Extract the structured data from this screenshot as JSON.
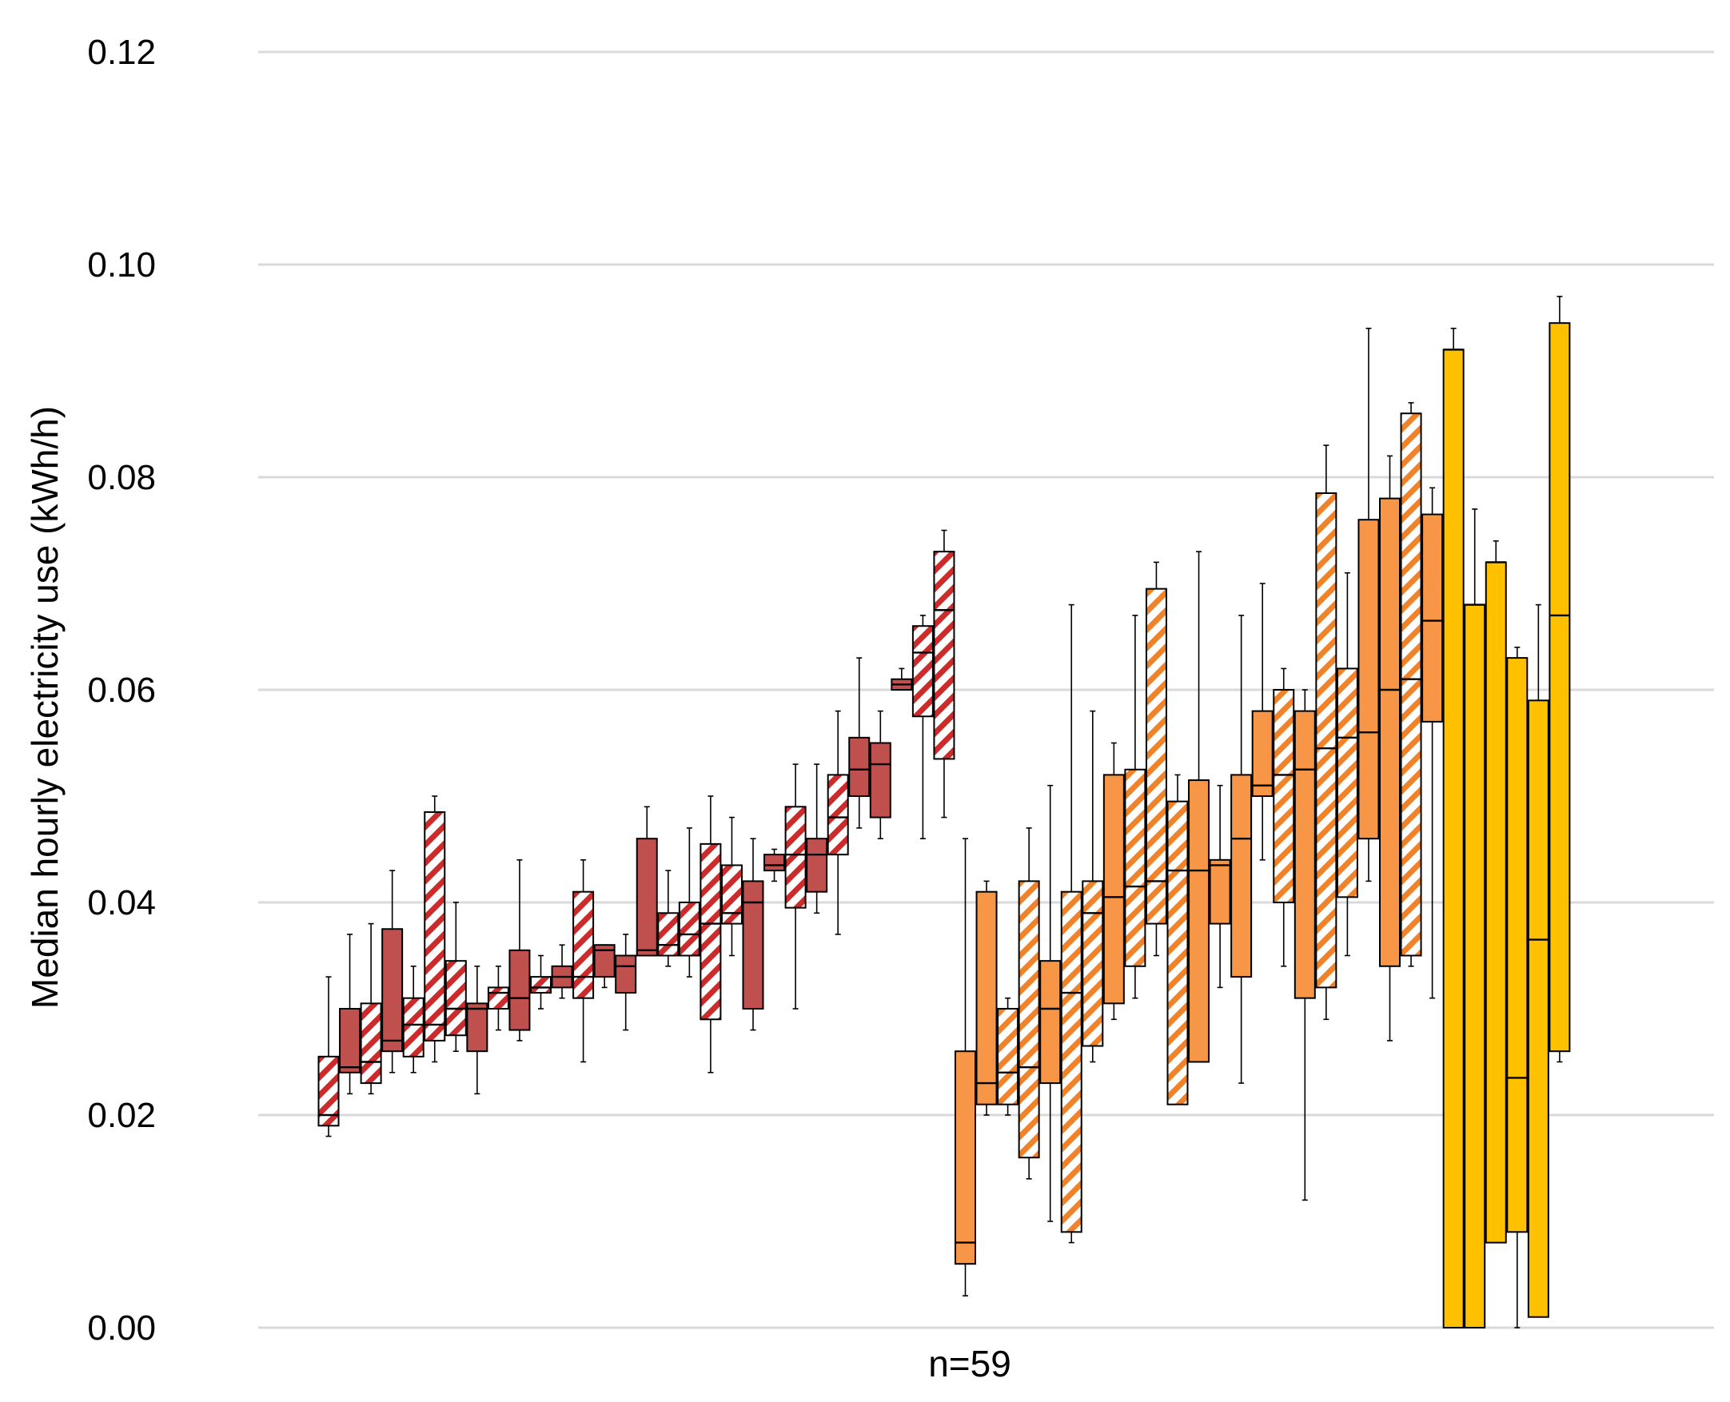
{
  "chart_data": {
    "type": "boxplot",
    "title": "",
    "ylabel": "Median hourly electricity use (kWh/h)",
    "xlabel": "n=59",
    "ylim": [
      0,
      0.12
    ],
    "yticks": [
      "0.00",
      "0.02",
      "0.04",
      "0.06",
      "0.08",
      "0.10",
      "0.12"
    ],
    "grid": true,
    "legend": "none",
    "colors": {
      "dark_red": "#c0504d",
      "stripe_red": "#cc2b2b",
      "orange": "#f79646",
      "stripe_orange": "#f0832a",
      "yellow": "#ffc000",
      "grid": "#d9d9d9"
    },
    "boxes": [
      {
        "q1": 0.019,
        "median": 0.02,
        "q3": 0.0255,
        "lo": 0.018,
        "hi": 0.033,
        "color": "red",
        "pattern": "hatch"
      },
      {
        "q1": 0.024,
        "median": 0.0245,
        "q3": 0.03,
        "lo": 0.022,
        "hi": 0.037,
        "color": "red",
        "pattern": "solid"
      },
      {
        "q1": 0.023,
        "median": 0.025,
        "q3": 0.0305,
        "lo": 0.022,
        "hi": 0.038,
        "color": "red",
        "pattern": "hatch"
      },
      {
        "q1": 0.026,
        "median": 0.027,
        "q3": 0.0375,
        "lo": 0.024,
        "hi": 0.043,
        "color": "red",
        "pattern": "solid"
      },
      {
        "q1": 0.0255,
        "median": 0.0285,
        "q3": 0.031,
        "lo": 0.024,
        "hi": 0.034,
        "color": "red",
        "pattern": "hatch"
      },
      {
        "q1": 0.027,
        "median": 0.0285,
        "q3": 0.0485,
        "lo": 0.025,
        "hi": 0.05,
        "color": "red",
        "pattern": "hatch"
      },
      {
        "q1": 0.0275,
        "median": 0.03,
        "q3": 0.0345,
        "lo": 0.026,
        "hi": 0.04,
        "color": "red",
        "pattern": "hatch"
      },
      {
        "q1": 0.026,
        "median": 0.03,
        "q3": 0.0305,
        "lo": 0.022,
        "hi": 0.034,
        "color": "red",
        "pattern": "solid"
      },
      {
        "q1": 0.03,
        "median": 0.0315,
        "q3": 0.032,
        "lo": 0.028,
        "hi": 0.034,
        "color": "red",
        "pattern": "hatch"
      },
      {
        "q1": 0.028,
        "median": 0.031,
        "q3": 0.0355,
        "lo": 0.027,
        "hi": 0.044,
        "color": "red",
        "pattern": "solid"
      },
      {
        "q1": 0.0315,
        "median": 0.032,
        "q3": 0.033,
        "lo": 0.03,
        "hi": 0.035,
        "color": "red",
        "pattern": "hatch"
      },
      {
        "q1": 0.032,
        "median": 0.033,
        "q3": 0.034,
        "lo": 0.031,
        "hi": 0.036,
        "color": "red",
        "pattern": "solid"
      },
      {
        "q1": 0.031,
        "median": 0.033,
        "q3": 0.041,
        "lo": 0.025,
        "hi": 0.044,
        "color": "red",
        "pattern": "hatch"
      },
      {
        "q1": 0.033,
        "median": 0.0355,
        "q3": 0.036,
        "lo": 0.032,
        "hi": 0.036,
        "color": "red",
        "pattern": "solid"
      },
      {
        "q1": 0.0315,
        "median": 0.034,
        "q3": 0.035,
        "lo": 0.028,
        "hi": 0.037,
        "color": "red",
        "pattern": "solid"
      },
      {
        "q1": 0.035,
        "median": 0.0355,
        "q3": 0.046,
        "lo": 0.035,
        "hi": 0.049,
        "color": "red",
        "pattern": "solid"
      },
      {
        "q1": 0.035,
        "median": 0.036,
        "q3": 0.039,
        "lo": 0.034,
        "hi": 0.043,
        "color": "red",
        "pattern": "hatch"
      },
      {
        "q1": 0.035,
        "median": 0.037,
        "q3": 0.04,
        "lo": 0.033,
        "hi": 0.047,
        "color": "red",
        "pattern": "hatch"
      },
      {
        "q1": 0.029,
        "median": 0.038,
        "q3": 0.0455,
        "lo": 0.024,
        "hi": 0.05,
        "color": "red",
        "pattern": "hatch"
      },
      {
        "q1": 0.038,
        "median": 0.039,
        "q3": 0.0435,
        "lo": 0.035,
        "hi": 0.048,
        "color": "red",
        "pattern": "hatch"
      },
      {
        "q1": 0.03,
        "median": 0.04,
        "q3": 0.042,
        "lo": 0.028,
        "hi": 0.046,
        "color": "red",
        "pattern": "solid"
      },
      {
        "q1": 0.043,
        "median": 0.0435,
        "q3": 0.0445,
        "lo": 0.042,
        "hi": 0.045,
        "color": "red",
        "pattern": "solid"
      },
      {
        "q1": 0.0395,
        "median": 0.0445,
        "q3": 0.049,
        "lo": 0.03,
        "hi": 0.053,
        "color": "red",
        "pattern": "hatch"
      },
      {
        "q1": 0.041,
        "median": 0.0445,
        "q3": 0.046,
        "lo": 0.039,
        "hi": 0.053,
        "color": "red",
        "pattern": "solid"
      },
      {
        "q1": 0.0445,
        "median": 0.048,
        "q3": 0.052,
        "lo": 0.037,
        "hi": 0.058,
        "color": "red",
        "pattern": "hatch"
      },
      {
        "q1": 0.05,
        "median": 0.0525,
        "q3": 0.0555,
        "lo": 0.047,
        "hi": 0.063,
        "color": "red",
        "pattern": "solid"
      },
      {
        "q1": 0.048,
        "median": 0.053,
        "q3": 0.055,
        "lo": 0.046,
        "hi": 0.058,
        "color": "red",
        "pattern": "solid"
      },
      {
        "q1": 0.06,
        "median": 0.0605,
        "q3": 0.061,
        "lo": 0.06,
        "hi": 0.062,
        "color": "red",
        "pattern": "solid"
      },
      {
        "q1": 0.0575,
        "median": 0.0635,
        "q3": 0.066,
        "lo": 0.046,
        "hi": 0.067,
        "color": "red",
        "pattern": "hatch"
      },
      {
        "q1": 0.0535,
        "median": 0.0675,
        "q3": 0.073,
        "lo": 0.048,
        "hi": 0.075,
        "color": "red",
        "pattern": "hatch"
      },
      {
        "q1": 0.006,
        "median": 0.008,
        "q3": 0.026,
        "lo": 0.003,
        "hi": 0.046,
        "color": "orange",
        "pattern": "solid"
      },
      {
        "q1": 0.021,
        "median": 0.023,
        "q3": 0.041,
        "lo": 0.02,
        "hi": 0.042,
        "color": "orange",
        "pattern": "solid"
      },
      {
        "q1": 0.021,
        "median": 0.024,
        "q3": 0.03,
        "lo": 0.02,
        "hi": 0.031,
        "color": "orange",
        "pattern": "hatch"
      },
      {
        "q1": 0.016,
        "median": 0.0245,
        "q3": 0.042,
        "lo": 0.014,
        "hi": 0.047,
        "color": "orange",
        "pattern": "hatch"
      },
      {
        "q1": 0.023,
        "median": 0.03,
        "q3": 0.0345,
        "lo": 0.01,
        "hi": 0.051,
        "color": "orange",
        "pattern": "solid"
      },
      {
        "q1": 0.009,
        "median": 0.0315,
        "q3": 0.041,
        "lo": 0.008,
        "hi": 0.068,
        "color": "orange",
        "pattern": "hatch"
      },
      {
        "q1": 0.0265,
        "median": 0.039,
        "q3": 0.042,
        "lo": 0.025,
        "hi": 0.058,
        "color": "orange",
        "pattern": "hatch"
      },
      {
        "q1": 0.0305,
        "median": 0.0405,
        "q3": 0.052,
        "lo": 0.029,
        "hi": 0.055,
        "color": "orange",
        "pattern": "solid"
      },
      {
        "q1": 0.034,
        "median": 0.0415,
        "q3": 0.0525,
        "lo": 0.031,
        "hi": 0.067,
        "color": "orange",
        "pattern": "hatch"
      },
      {
        "q1": 0.038,
        "median": 0.042,
        "q3": 0.0695,
        "lo": 0.035,
        "hi": 0.072,
        "color": "orange",
        "pattern": "hatch"
      },
      {
        "q1": 0.021,
        "median": 0.043,
        "q3": 0.0495,
        "lo": 0.021,
        "hi": 0.052,
        "color": "orange",
        "pattern": "hatch"
      },
      {
        "q1": 0.025,
        "median": 0.043,
        "q3": 0.0515,
        "lo": 0.025,
        "hi": 0.073,
        "color": "orange",
        "pattern": "solid"
      },
      {
        "q1": 0.038,
        "median": 0.0435,
        "q3": 0.044,
        "lo": 0.032,
        "hi": 0.051,
        "color": "orange",
        "pattern": "solid"
      },
      {
        "q1": 0.033,
        "median": 0.046,
        "q3": 0.052,
        "lo": 0.023,
        "hi": 0.067,
        "color": "orange",
        "pattern": "solid"
      },
      {
        "q1": 0.05,
        "median": 0.051,
        "q3": 0.058,
        "lo": 0.044,
        "hi": 0.07,
        "color": "orange",
        "pattern": "solid"
      },
      {
        "q1": 0.04,
        "median": 0.052,
        "q3": 0.06,
        "lo": 0.034,
        "hi": 0.062,
        "color": "orange",
        "pattern": "hatch"
      },
      {
        "q1": 0.031,
        "median": 0.0525,
        "q3": 0.058,
        "lo": 0.012,
        "hi": 0.06,
        "color": "orange",
        "pattern": "solid"
      },
      {
        "q1": 0.032,
        "median": 0.0545,
        "q3": 0.0785,
        "lo": 0.029,
        "hi": 0.083,
        "color": "orange",
        "pattern": "hatch"
      },
      {
        "q1": 0.0405,
        "median": 0.0555,
        "q3": 0.062,
        "lo": 0.035,
        "hi": 0.071,
        "color": "orange",
        "pattern": "hatch"
      },
      {
        "q1": 0.046,
        "median": 0.056,
        "q3": 0.076,
        "lo": 0.042,
        "hi": 0.094,
        "color": "orange",
        "pattern": "solid"
      },
      {
        "q1": 0.034,
        "median": 0.06,
        "q3": 0.078,
        "lo": 0.027,
        "hi": 0.082,
        "color": "orange",
        "pattern": "solid"
      },
      {
        "q1": 0.035,
        "median": 0.061,
        "q3": 0.086,
        "lo": 0.034,
        "hi": 0.087,
        "color": "orange",
        "pattern": "hatch"
      },
      {
        "q1": 0.057,
        "median": 0.0665,
        "q3": 0.0765,
        "lo": 0.031,
        "hi": 0.079,
        "color": "orange",
        "pattern": "solid"
      },
      {
        "q1": 0.0,
        "median": 0.092,
        "q3": 0.092,
        "lo": 0.0,
        "hi": 0.094,
        "color": "yellow",
        "pattern": "solid"
      },
      {
        "q1": 0.0,
        "median": 0.068,
        "q3": 0.068,
        "lo": 0.0,
        "hi": 0.077,
        "color": "yellow",
        "pattern": "solid"
      },
      {
        "q1": 0.008,
        "median": 0.072,
        "q3": 0.072,
        "lo": 0.008,
        "hi": 0.074,
        "color": "yellow",
        "pattern": "solid"
      },
      {
        "q1": 0.009,
        "median": 0.0235,
        "q3": 0.063,
        "lo": 0.0,
        "hi": 0.064,
        "color": "yellow",
        "pattern": "solid"
      },
      {
        "q1": 0.001,
        "median": 0.0365,
        "q3": 0.059,
        "lo": 0.001,
        "hi": 0.068,
        "color": "yellow",
        "pattern": "solid"
      },
      {
        "q1": 0.026,
        "median": 0.067,
        "q3": 0.0945,
        "lo": 0.025,
        "hi": 0.097,
        "color": "yellow",
        "pattern": "solid"
      }
    ]
  }
}
